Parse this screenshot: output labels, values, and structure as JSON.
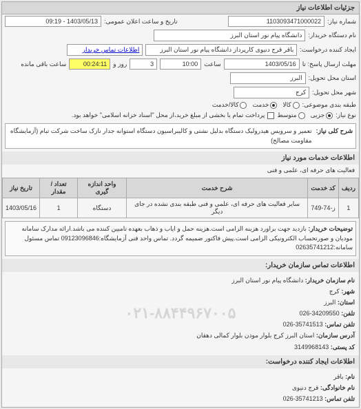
{
  "panel_title": "جزئیات اطلاعات نیاز",
  "row1": {
    "req_no_label": "شماره نیاز:",
    "req_no": "1103093471000022",
    "announce_label": "تاریخ و ساعت اعلان عمومی:",
    "announce": "1403/05/13 - 09:19"
  },
  "row2": {
    "buyer_label": "نام دستگاه خریدار:",
    "buyer": "دانشگاه پیام نور استان البرز"
  },
  "row3": {
    "creator_label": "ایجاد کننده درخواست:",
    "creator": "باقر قرج دنیوی کارپرداز دانشگاه پیام نور استان البرز",
    "contact_link": "اطلاعات تماس خریدار"
  },
  "row4": {
    "deadline_label": "مهلت ارسال پاسخ: تا",
    "date": "1403/05/16",
    "time_label": "ساعت",
    "time": "10:00",
    "days": "3",
    "days_label": "روز و",
    "remaining": "00:24:11",
    "remaining_label": "ساعت باقی مانده"
  },
  "row5": {
    "province_label": "استان محل تحویل:",
    "province": "البرز"
  },
  "row6": {
    "city_label": "شهر محل تحویل:",
    "city": "کرج"
  },
  "row7": {
    "group_label": "طبقه بندی موضوعی:",
    "opt_goods": "کالا",
    "opt_service": "خدمت",
    "opt_goods_service": "کالا/خدمت"
  },
  "row8": {
    "need_label": "نوع نیاز:",
    "opt_small": "جزیی",
    "opt_medium": "متوسط",
    "pay_note": "پرداخت تمام یا بخشی از مبلغ خرید،از محل \"اسناد خزانه اسلامی\" خواهد بود."
  },
  "description": {
    "label": "شرح کلی نیاز:",
    "text": "تعمیر و سرویس هیدرولیک دستگاه بدلیل نشتی و کالیبراسیون دستگاه استوانه جدار نازک ساخت شرکت تبام (آزمایشگاه مقاومت مصالح)"
  },
  "services_title": "اطلاعات خدمات مورد نیاز",
  "services_sub": "فعالیت های حرفه ای، علمی و فنی",
  "table": {
    "headers": [
      "ردیف",
      "کد خدمت",
      "شرح خدمت",
      "واحد اندازه گیری",
      "تعداد / مقدار",
      "تاریخ نیاز"
    ],
    "row": [
      "1",
      "ز-74-749",
      "سایر فعالیت های حرفه ای، علمی و فنی طبقه بندی نشده در جای دیگر",
      "دستگاه",
      "1",
      "1403/05/16"
    ]
  },
  "buyer_note": {
    "label": "توضیحات خریدار:",
    "text": "بازدید جهت براورد هزینه الزامی است.هزینه حمل و ایاب و ذهاب بعهده تامیین کننده می باشد.ارائه مدارک سامانه مودیان و صورتحساب الکترونیکی الزامی است.پیش فاکتور ضمیمه گردد. تماس واحد فنی آزمایشگاه:09123096846 تماس مسئول سامانه:02635741212"
  },
  "contact_title": "اطلاعات تماس سازمان خریدار:",
  "contact": {
    "org_label": "نام سازمان خریدار:",
    "org": "دانشگاه پیام نور استان البرز",
    "city_label": "شهر:",
    "city": "کرج",
    "province_label": "استان:",
    "province": "البرز",
    "tel_label": "تلفن:",
    "tel": "34209550-026",
    "fax_label": "تلفن تماس:",
    "fax": "35741513-026",
    "addr_label": "آدرس سازمان:",
    "addr": "استان البرز کرج بلوار موذن بلوار کمالی دهقان",
    "post_label": "کد پستی:",
    "post": "3149968143"
  },
  "creator_title": "اطلاعات ایجاد کننده درخواست:",
  "creator_info": {
    "name_label": "نام:",
    "name": "باقر",
    "family_label": "نام خانوادگی:",
    "family": "قرج دنیوی",
    "tel_label": "تلفن تماس:",
    "tel": "35741213-026"
  },
  "watermark": "۰۲۱-۸۸۴۴۹۶۷۰۰۵"
}
